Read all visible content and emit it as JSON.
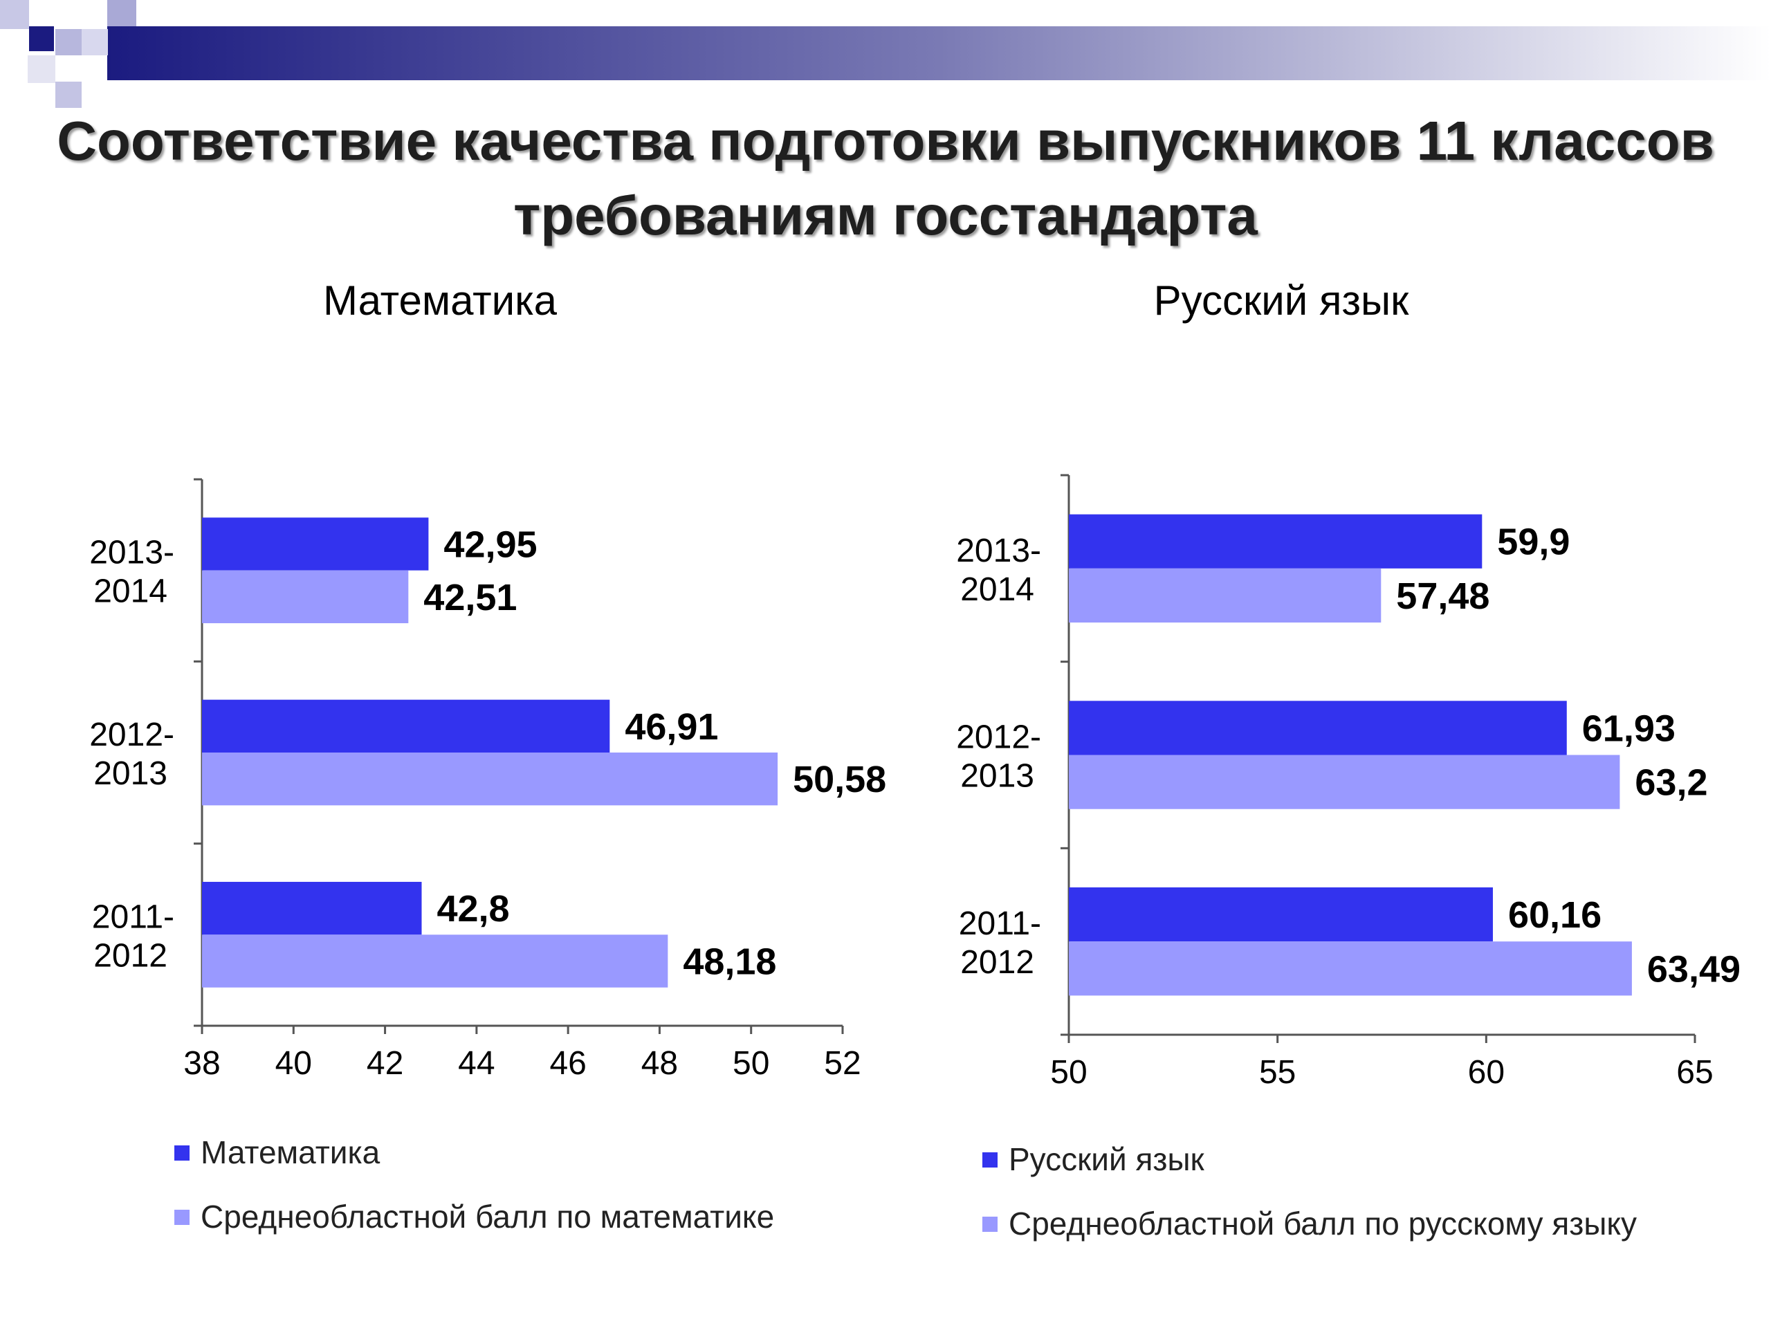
{
  "page": {
    "title": "Соответствие качества подготовки выпускников 11 классов требованиям госстандарта"
  },
  "colors": {
    "school": "#3333ee",
    "regional": "#9999ff",
    "title_text": "#1f1f1f",
    "header_dark": "#1b1b80"
  },
  "chart_data": [
    {
      "type": "bar",
      "orientation": "horizontal",
      "title": "Математика",
      "categories": [
        "2013-2014",
        "2012-2013",
        "2011-2012"
      ],
      "series": [
        {
          "name": "Математика",
          "values": [
            42.95,
            46.91,
            42.8
          ],
          "labels": [
            "42,95",
            "46,91",
            "42,8"
          ]
        },
        {
          "name": "Среднеобластной балл по математике",
          "values": [
            42.51,
            50.58,
            48.18
          ],
          "labels": [
            "42,51",
            "50,58",
            "48,18"
          ]
        }
      ],
      "xlim": [
        38,
        52
      ],
      "xticks": [
        "38",
        "40",
        "42",
        "44",
        "46",
        "48",
        "50",
        "52"
      ],
      "legend_position": "bottom"
    },
    {
      "type": "bar",
      "orientation": "horizontal",
      "title": "Русский язык",
      "categories": [
        "2013-2014",
        "2012-2013",
        "2011-2012"
      ],
      "series": [
        {
          "name": "Русский язык",
          "values": [
            59.9,
            61.93,
            60.16
          ],
          "labels": [
            "59,9",
            "61,93",
            "60,16"
          ]
        },
        {
          "name": "Среднеобластной балл по русскому языку",
          "values": [
            57.48,
            63.2,
            63.49
          ],
          "labels": [
            "57,48",
            "63,2",
            "63,49"
          ]
        }
      ],
      "xlim": [
        50,
        65
      ],
      "xticks": [
        "50",
        "55",
        "60",
        "65"
      ],
      "legend_position": "bottom"
    }
  ]
}
